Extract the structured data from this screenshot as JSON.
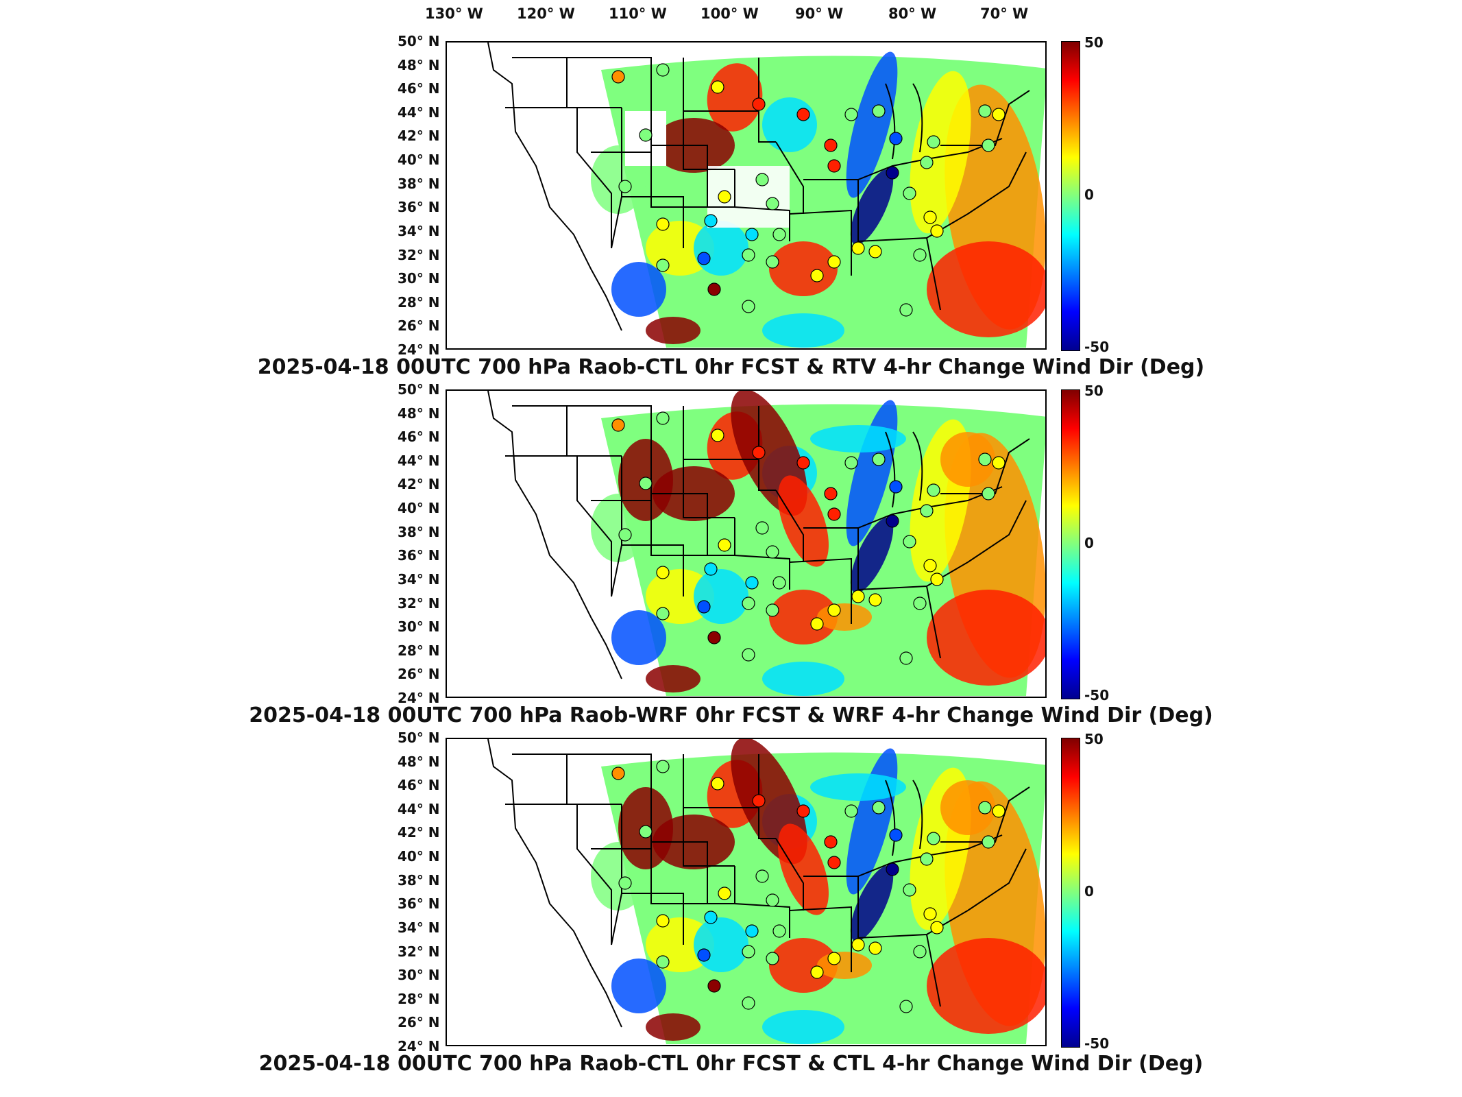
{
  "longitude_labels": [
    "130° W",
    "120° W",
    "110° W",
    "100° W",
    "90° W",
    "80° W",
    "70° W"
  ],
  "latitude_labels": [
    "50° N",
    "48° N",
    "46° N",
    "44° N",
    "42° N",
    "40° N",
    "38° N",
    "36° N",
    "34° N",
    "32° N",
    "30° N",
    "28° N",
    "26° N",
    "24° N"
  ],
  "colorbar": {
    "max_label": "50",
    "mid_label": "0",
    "min_label": "-50",
    "range": [
      -50,
      50
    ],
    "colormap": "jet"
  },
  "panels": [
    {
      "title": "2025-04-18 00UTC 700 hPa Raob-CTL 0hr FCST & RTV 4-hr Change Wind Dir (Deg)"
    },
    {
      "title": "2025-04-18 00UTC 700 hPa Raob-WRF 0hr FCST & WRF 4-hr Change Wind Dir (Deg)"
    },
    {
      "title": "2025-04-18 00UTC 700 hPa Raob-CTL 0hr FCST & CTL 4-hr Change Wind Dir (Deg)"
    }
  ],
  "colors": {
    "dark_red": "#8b0000",
    "red": "#ff2000",
    "orange": "#ff9000",
    "yellow": "#ffff00",
    "green": "#7fff7f",
    "cyan": "#00e0ff",
    "blue": "#0050ff",
    "dark_blue": "#00008b"
  }
}
